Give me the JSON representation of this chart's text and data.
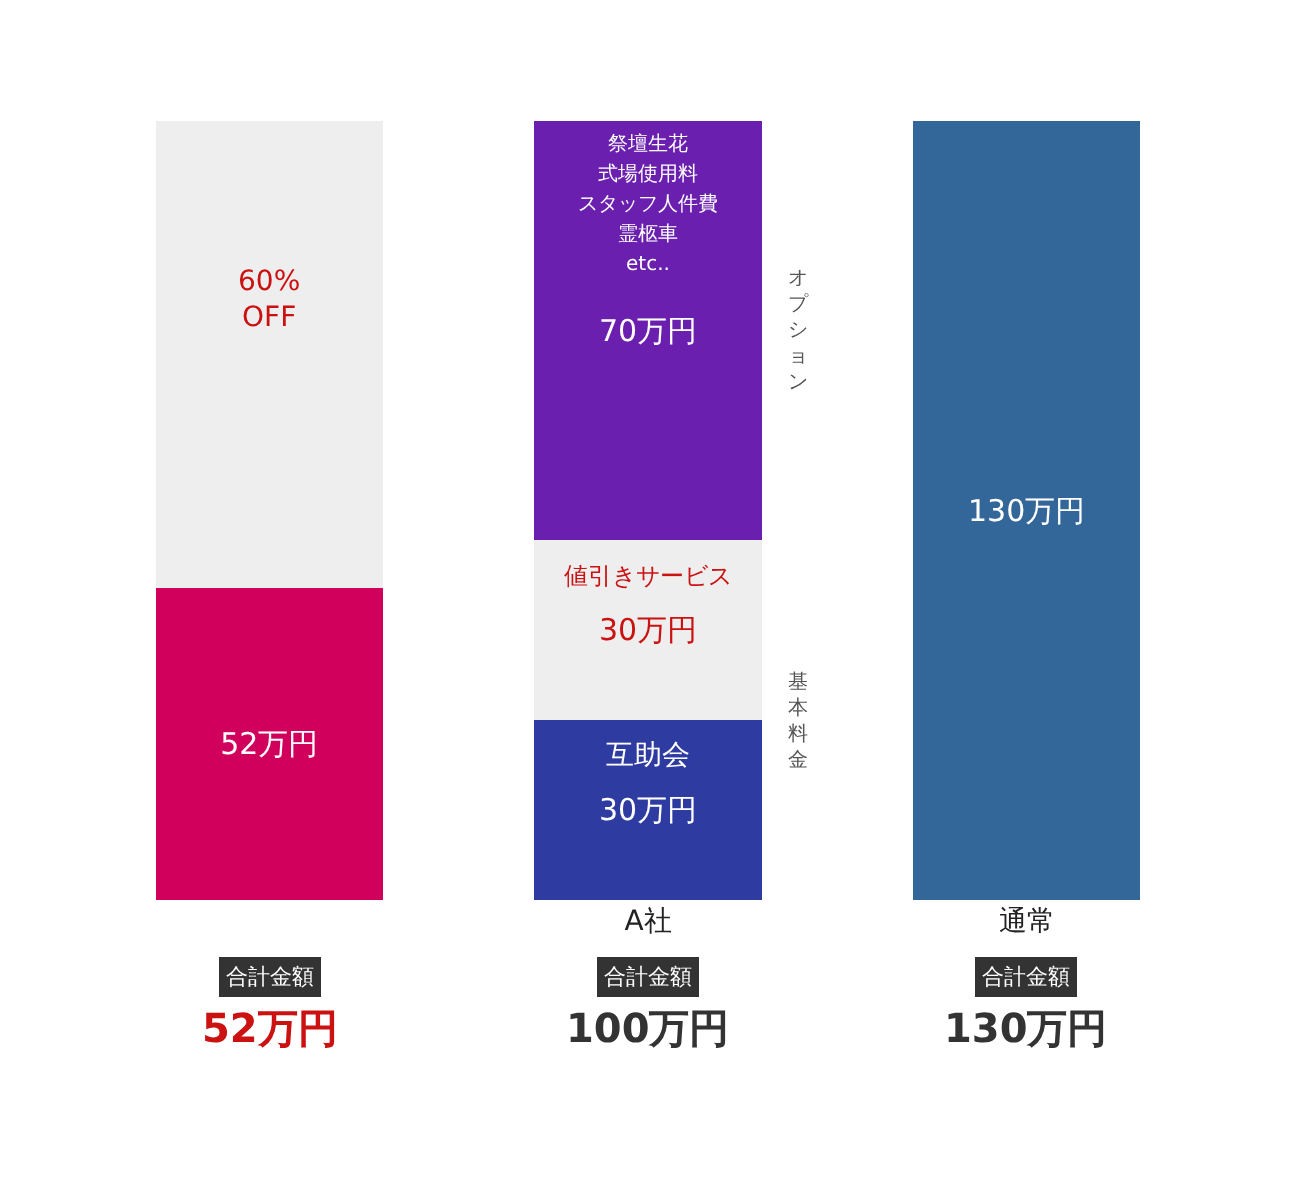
{
  "chart_data": {
    "type": "bar",
    "stacked": true,
    "categories": [
      null,
      "A社",
      "通常"
    ],
    "series": [
      {
        "colors": [
          "#d0005c",
          "#2e3ba0",
          "#336699"
        ],
        "values": [
          52,
          30,
          130
        ],
        "value_labels": [
          "52万円",
          "30万円",
          "130万円"
        ]
      },
      {
        "color": "#eeeeee",
        "values": [
          78,
          30,
          null
        ],
        "value_labels": [
          null,
          "30万円",
          null
        ]
      },
      {
        "color": "#6a1fae",
        "values": [
          null,
          70,
          null
        ],
        "value_labels": [
          null,
          "70万円",
          null
        ]
      }
    ],
    "annotations": [
      "60%\nOFF",
      "祭壇生花",
      "式場使用料",
      "スタッフ人件費",
      "霊柩車",
      "etc..",
      "値引きサービス",
      "互助会",
      "オプション",
      "基本料金",
      "合計金額",
      "合計金額",
      "合計金額",
      "52万円",
      "100万円",
      "130万円"
    ]
  }
}
